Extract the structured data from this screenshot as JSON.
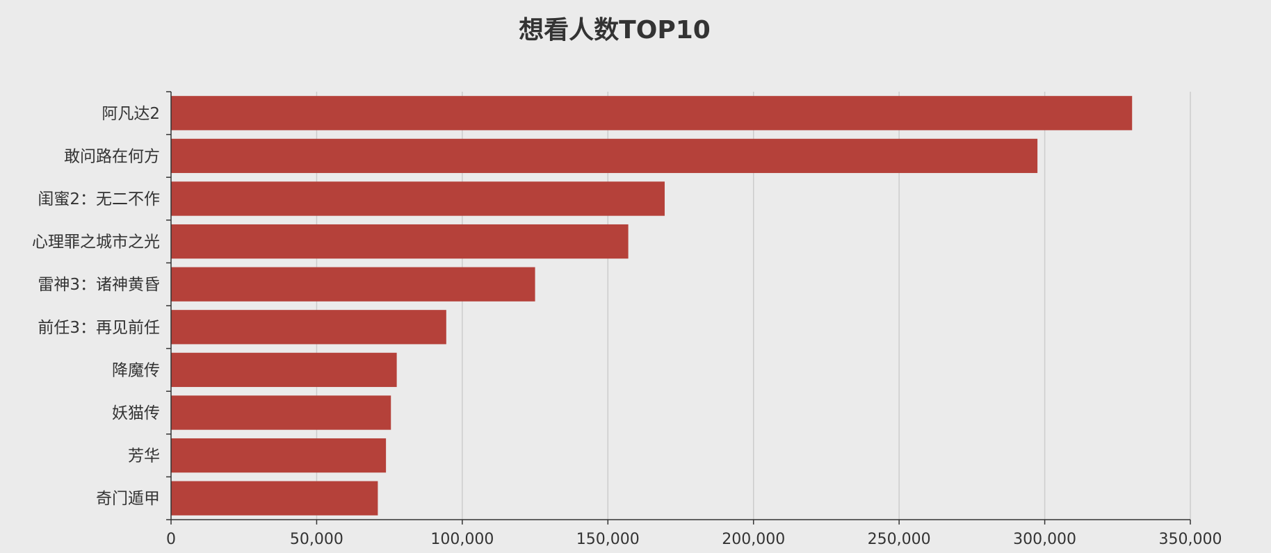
{
  "chart_data": {
    "type": "bar",
    "orientation": "horizontal",
    "title": "想看人数TOP10",
    "categories": [
      "阿凡达2",
      "敢问路在何方",
      "闺蜜2：无二不作",
      "心理罪之城市之光",
      "雷神3：诸神黄昏",
      "前任3：再见前任",
      "降魔传",
      "妖猫传",
      "芳华",
      "奇门遁甲"
    ],
    "values": [
      330000,
      297500,
      169500,
      157000,
      125000,
      94500,
      77500,
      75500,
      73800,
      71000
    ],
    "xlim": [
      0,
      350000
    ],
    "xticks": [
      0,
      50000,
      100000,
      150000,
      200000,
      250000,
      300000,
      350000
    ],
    "xtick_labels": [
      "0",
      "50,000",
      "100,000",
      "150,000",
      "200,000",
      "250,000",
      "300,000",
      "350,000"
    ],
    "xlabel": "",
    "ylabel": "",
    "grid": "vertical",
    "bar_color": "#b5413a",
    "legend": "none"
  }
}
